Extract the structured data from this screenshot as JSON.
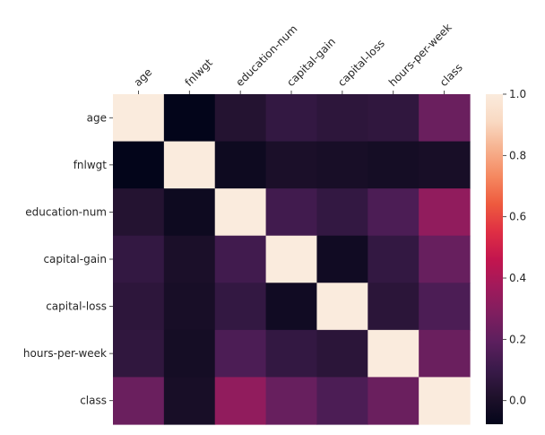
{
  "chart_data": {
    "type": "heatmap",
    "title": "",
    "xlabel": "",
    "ylabel": "",
    "x_labels": [
      "age",
      "fnlwgt",
      "education-num",
      "capital-gain",
      "capital-loss",
      "hours-per-week",
      "class"
    ],
    "y_labels": [
      "age",
      "fnlwgt",
      "education-num",
      "capital-gain",
      "capital-loss",
      "hours-per-week",
      "class"
    ],
    "values": [
      [
        1.0,
        -0.077,
        0.031,
        0.078,
        0.058,
        0.069,
        0.23
      ],
      [
        -0.077,
        1.0,
        -0.043,
        0.00043,
        -0.01,
        -0.019,
        -0.0095
      ],
      [
        0.031,
        -0.043,
        1.0,
        0.12,
        0.08,
        0.15,
        0.33
      ],
      [
        0.078,
        0.00043,
        0.12,
        1.0,
        -0.032,
        0.078,
        0.22
      ],
      [
        0.058,
        -0.01,
        0.08,
        -0.032,
        1.0,
        0.054,
        0.15
      ],
      [
        0.069,
        -0.019,
        0.15,
        0.078,
        0.054,
        1.0,
        0.23
      ],
      [
        0.23,
        -0.0095,
        0.33,
        0.22,
        0.15,
        0.23,
        1.0
      ]
    ],
    "colorbar": {
      "min": -0.077,
      "max": 1.0,
      "ticks": [
        0.0,
        0.2,
        0.4,
        0.6,
        0.8,
        1.0
      ],
      "tick_labels": [
        "0.0",
        "0.2",
        "0.4",
        "0.6",
        "0.8",
        "1.0"
      ],
      "colormap": "rocket",
      "colormap_stops": [
        "#03051a",
        "#1f112b",
        "#3a1a4a",
        "#5c1f5e",
        "#7e1e5f",
        "#a11a5b",
        "#c3154e",
        "#df2f44",
        "#ee5a3e",
        "#f58860",
        "#f6b18e",
        "#f9d9c2",
        "#faebdd"
      ]
    },
    "x_tick_rotation": 45,
    "x_ticks_position": "top",
    "grid": false
  }
}
